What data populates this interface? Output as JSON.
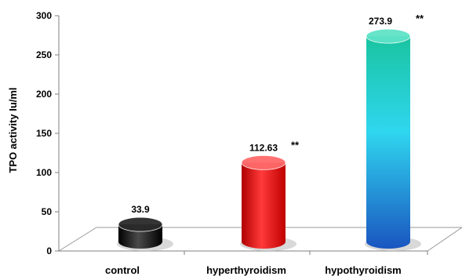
{
  "chart_data": {
    "type": "bar",
    "title": "",
    "xlabel": "",
    "ylabel": "TPO activity Iu/ml",
    "ylim": [
      0,
      300
    ],
    "yticks": [
      0,
      50,
      100,
      150,
      200,
      250,
      300
    ],
    "grid": false,
    "legend": "none",
    "categories": [
      "control",
      "hyperthyroidism",
      "hypothyroidism"
    ],
    "values": [
      33.9,
      112.63,
      273.9
    ],
    "data_labels": [
      "33.9",
      "112.63",
      "273.9"
    ],
    "significance": [
      "",
      "**",
      "**"
    ],
    "colors": {
      "control": [
        "#000000",
        "#4a4a4a",
        "#000000"
      ],
      "hyperthyroidism": [
        "#b00000",
        "#ff3a3a",
        "#c00000"
      ],
      "hypothyroidism_top": "#19c4a0",
      "hypothyroidism_mid": "#2fd6ef",
      "hypothyroidism_bottom": "#1a55c0"
    }
  }
}
